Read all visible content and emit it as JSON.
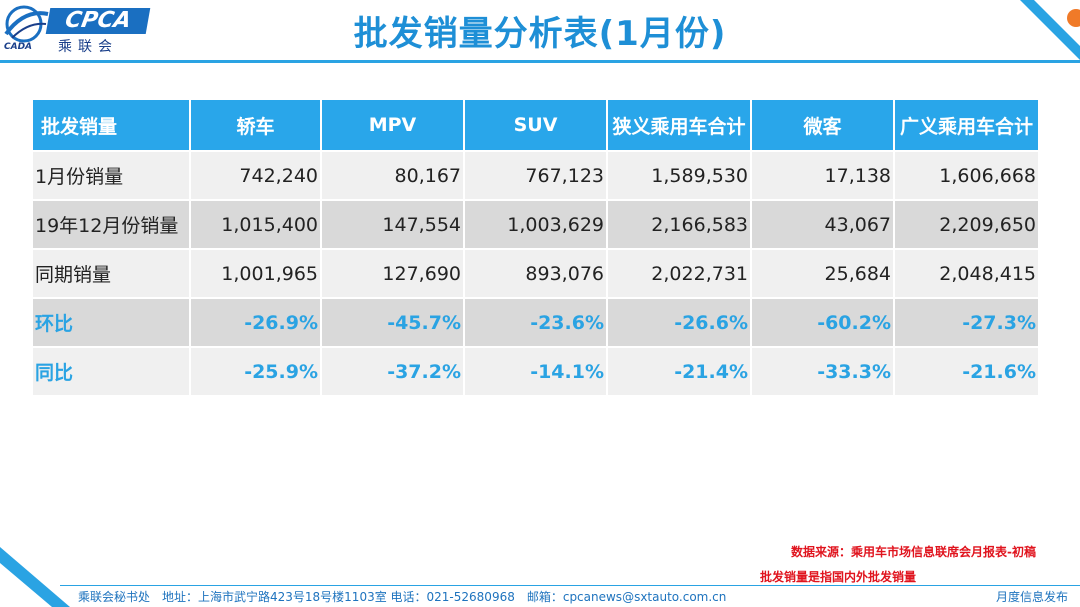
{
  "header": {
    "logo_main": "CPCA",
    "logo_sub": "乘联会",
    "logo_caam": "CADA",
    "title": "批发销量分析表(1月份)"
  },
  "table": {
    "columns": [
      "批发销量",
      "轿车",
      "MPV",
      "SUV",
      "狭义乘用车合计",
      "微客",
      "广义乘用车合计"
    ],
    "rows": [
      {
        "label": "1月份销量",
        "values": [
          "742,240",
          "80,167",
          "767,123",
          "1,589,530",
          "17,138",
          "1,606,668"
        ],
        "kind": "odd"
      },
      {
        "label": "19年12月份销量",
        "values": [
          "1,015,400",
          "147,554",
          "1,003,629",
          "2,166,583",
          "43,067",
          "2,209,650"
        ],
        "kind": "even"
      },
      {
        "label": "同期销量",
        "values": [
          "1,001,965",
          "127,690",
          "893,076",
          "2,022,731",
          "25,684",
          "2,048,415"
        ],
        "kind": "odd"
      },
      {
        "label": "环比",
        "values": [
          "-26.9%",
          "-45.7%",
          "-23.6%",
          "-26.6%",
          "-60.2%",
          "-27.3%"
        ],
        "kind": "even pct"
      },
      {
        "label": "同比",
        "values": [
          "-25.9%",
          "-37.2%",
          "-14.1%",
          "-21.4%",
          "-33.3%",
          "-21.6%"
        ],
        "kind": "odd pct"
      }
    ]
  },
  "notes": {
    "source": "数据来源：乘用车市场信息联席会月报表-初稿",
    "definition": "批发销量是指国内外批发销量"
  },
  "footer": {
    "address": "乘联会秘书处　地址：上海市武宁路423号18号楼1103室  电话：021-52680968　邮箱：cpcanews@sxtauto.com.cn",
    "right": "月度信息发布"
  },
  "colors": {
    "accent": "#29a6ea",
    "percent_text": "#2aa3e3",
    "note_red": "#e0141e"
  }
}
